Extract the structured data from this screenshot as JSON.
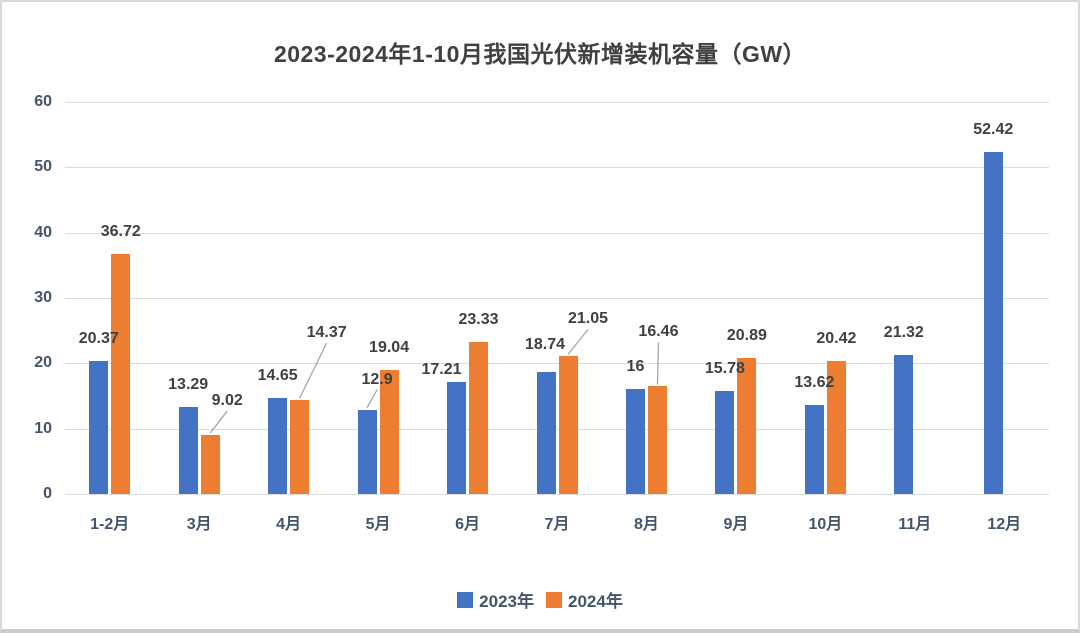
{
  "chart_data": {
    "type": "bar",
    "title": "2023-2024年1-10月我国光伏新增装机容量（GW）",
    "xlabel": "",
    "ylabel": "",
    "categories": [
      "1-2月",
      "3月",
      "4月",
      "5月",
      "6月",
      "7月",
      "8月",
      "9月",
      "10月",
      "11月",
      "12月"
    ],
    "series": [
      {
        "name": "2023年",
        "color": "#4472C4",
        "values": [
          20.37,
          13.29,
          14.65,
          12.9,
          17.21,
          18.74,
          16,
          15.78,
          13.62,
          21.32,
          52.42
        ]
      },
      {
        "name": "2024年",
        "color": "#ED7D31",
        "values": [
          36.72,
          9.02,
          14.37,
          19.04,
          23.33,
          21.05,
          16.46,
          20.89,
          20.42,
          null,
          null
        ]
      }
    ],
    "ylim": [
      0,
      60
    ],
    "yticks": [
      0,
      10,
      20,
      30,
      40,
      50,
      60
    ],
    "grid": true,
    "legend_position": "bottom",
    "colors": {
      "title_text": "#404040",
      "data_label_text": "#404040",
      "axis_text": "#44546A",
      "gridline": "#DCDCDC",
      "leader_line": "#A6A6A6",
      "frame_border": "#D9D9D9"
    },
    "label_layout_hints": {
      "s0c3": {
        "dx": 10,
        "dy": -8,
        "leader": true
      },
      "s0c4": {
        "dx": -15,
        "dy": 10
      },
      "s0c5": {
        "dx": -1,
        "dy": -5
      },
      "s1c1": {
        "dx": 17,
        "dy": -12,
        "leader": true
      },
      "s1c2": {
        "dx": 27,
        "dy": -45,
        "leader": true
      },
      "s1c5": {
        "dx": 20,
        "dy": -15,
        "leader": true
      },
      "s1c6": {
        "dx": 1,
        "dy": -32,
        "leader": true
      }
    }
  }
}
